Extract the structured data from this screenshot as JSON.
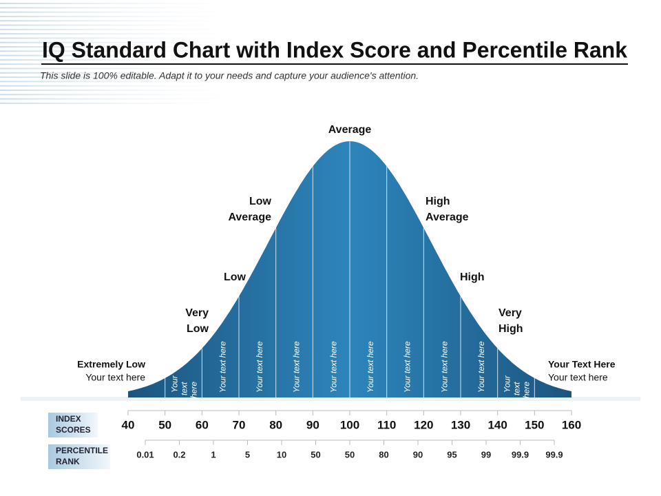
{
  "header": {
    "title": "IQ Standard Chart with Index Score and Percentile Rank",
    "subtitle": "This slide is 100% editable. Adapt it to your needs and capture your audience's attention."
  },
  "curve_labels": [
    {
      "lines": [
        "Average"
      ]
    },
    {
      "lines": [
        "Low",
        "Average"
      ]
    },
    {
      "lines": [
        "High",
        "Average"
      ]
    },
    {
      "lines": [
        "Low"
      ]
    },
    {
      "lines": [
        "High"
      ]
    },
    {
      "lines": [
        "Very",
        "Low"
      ]
    },
    {
      "lines": [
        "Very",
        "High"
      ]
    }
  ],
  "left_note": {
    "title": "Extremely Low",
    "text": "Your text here"
  },
  "right_note": {
    "title": "Your Text Here",
    "text": "Your text here"
  },
  "segments": [
    {
      "lines": [
        "Your",
        "text",
        "here"
      ]
    },
    {
      "lines": [
        "Your text here"
      ]
    },
    {
      "lines": [
        "Your text here"
      ]
    },
    {
      "lines": [
        "Your text here"
      ]
    },
    {
      "lines": [
        "Your text here"
      ]
    },
    {
      "lines": [
        "Your text here"
      ]
    },
    {
      "lines": [
        "Your text here"
      ]
    },
    {
      "lines": [
        "Your text here"
      ]
    },
    {
      "lines": [
        "Your text here"
      ]
    },
    {
      "lines": [
        "Your",
        "text",
        "here"
      ]
    }
  ],
  "index_scores": {
    "label": [
      "INDEX",
      "SCORES"
    ],
    "values": [
      40,
      50,
      60,
      70,
      80,
      90,
      100,
      110,
      120,
      130,
      140,
      150,
      160
    ]
  },
  "percentile_rank": {
    "label": [
      "PERCENTILE",
      "RANK"
    ],
    "values": [
      0.01,
      0.2,
      1,
      5,
      10,
      50,
      50,
      80,
      90,
      95,
      99,
      99.9,
      99.9
    ]
  }
}
